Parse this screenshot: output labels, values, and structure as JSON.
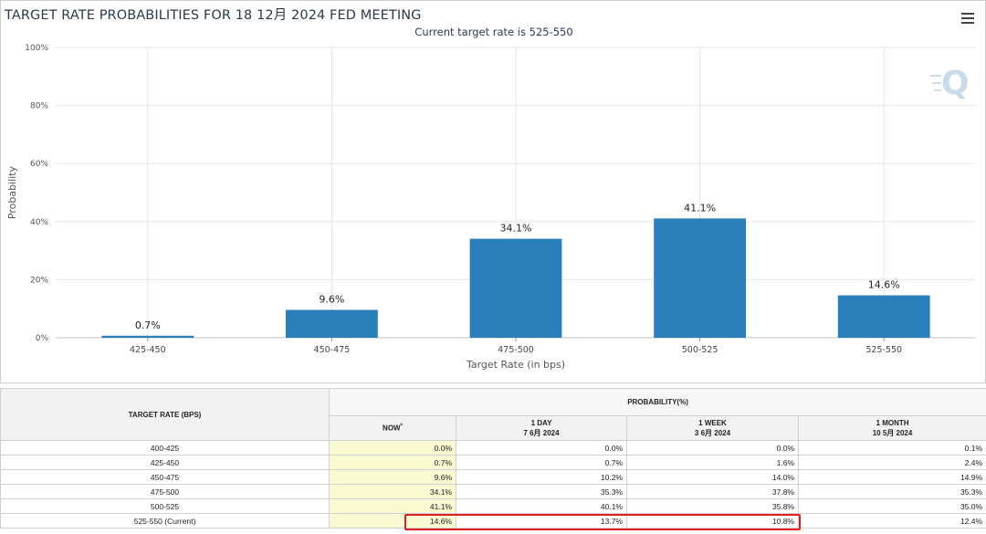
{
  "header": {
    "title": "TARGET RATE PROBABILITIES FOR 18 12月 2024 FED MEETING",
    "subtitle": "Current target rate is 525-550",
    "menu_icon": "hamburger-menu-icon",
    "watermark_icon": "q-logo-icon"
  },
  "colors": {
    "bar": "#2a7fba",
    "highlight": "#e02020",
    "now_col": "#fafad2"
  },
  "chart_data": {
    "type": "bar",
    "title": "TARGET RATE PROBABILITIES FOR 18 12月 2024 FED MEETING",
    "subtitle": "Current target rate is 525-550",
    "xlabel": "Target Rate (in bps)",
    "ylabel": "Probability",
    "categories": [
      "425-450",
      "450-475",
      "475-500",
      "500-525",
      "525-550"
    ],
    "values": [
      0.7,
      9.6,
      34.1,
      41.1,
      14.6
    ],
    "data_labels": [
      "0.7%",
      "9.6%",
      "34.1%",
      "41.1%",
      "14.6%"
    ],
    "ylim": [
      0,
      100
    ],
    "yticks": [
      0,
      20,
      40,
      60,
      80,
      100
    ],
    "ytick_labels": [
      "0%",
      "20%",
      "40%",
      "60%",
      "80%",
      "100%"
    ],
    "grid": true,
    "legend": "none"
  },
  "table": {
    "rate_header": "TARGET RATE (BPS)",
    "prob_header": "PROBABILITY(%)",
    "columns": [
      {
        "label": "NOW",
        "sup": "*",
        "date": ""
      },
      {
        "label": "1 DAY",
        "date": "7 6月 2024"
      },
      {
        "label": "1 WEEK",
        "date": "3 6月 2024"
      },
      {
        "label": "1 MONTH",
        "date": "10 5月 2024"
      }
    ],
    "rows": [
      {
        "rate": "400-425",
        "now": "0.0%",
        "day": "0.0%",
        "week": "0.0%",
        "month": "0.1%"
      },
      {
        "rate": "425-450",
        "now": "0.7%",
        "day": "0.7%",
        "week": "1.6%",
        "month": "2.4%"
      },
      {
        "rate": "450-475",
        "now": "9.6%",
        "day": "10.2%",
        "week": "14.0%",
        "month": "14.9%"
      },
      {
        "rate": "475-500",
        "now": "34.1%",
        "day": "35.3%",
        "week": "37.8%",
        "month": "35.3%"
      },
      {
        "rate": "500-525",
        "now": "41.1%",
        "day": "40.1%",
        "week": "35.8%",
        "month": "35.0%"
      },
      {
        "rate": "525-550 (Current)",
        "now": "14.6%",
        "day": "13.7%",
        "week": "10.8%",
        "month": "12.4%"
      }
    ]
  }
}
